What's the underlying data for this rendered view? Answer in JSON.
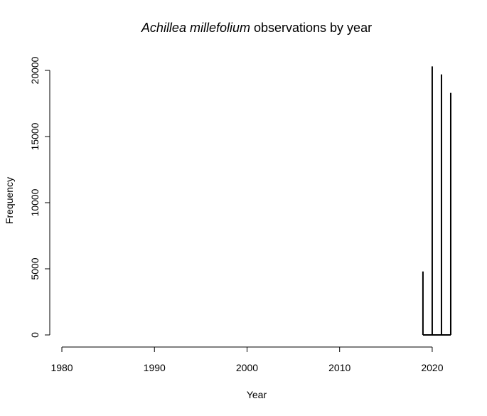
{
  "chart_data": {
    "type": "bar",
    "title_italic": "Achillea millefolium",
    "title_rest": " observations by year",
    "xlabel": "Year",
    "ylabel": "Frequency",
    "xlim": [
      1979,
      2023
    ],
    "ylim": [
      0,
      20000
    ],
    "xticks": [
      1980,
      1990,
      2000,
      2010,
      2020
    ],
    "yticks": [
      0,
      5000,
      10000,
      15000,
      20000
    ],
    "grid": false,
    "legend": "none",
    "x": [
      2019,
      2020,
      2021,
      2022
    ],
    "values": [
      4800,
      20300,
      19700,
      18300
    ],
    "bar_color": "#000000"
  }
}
